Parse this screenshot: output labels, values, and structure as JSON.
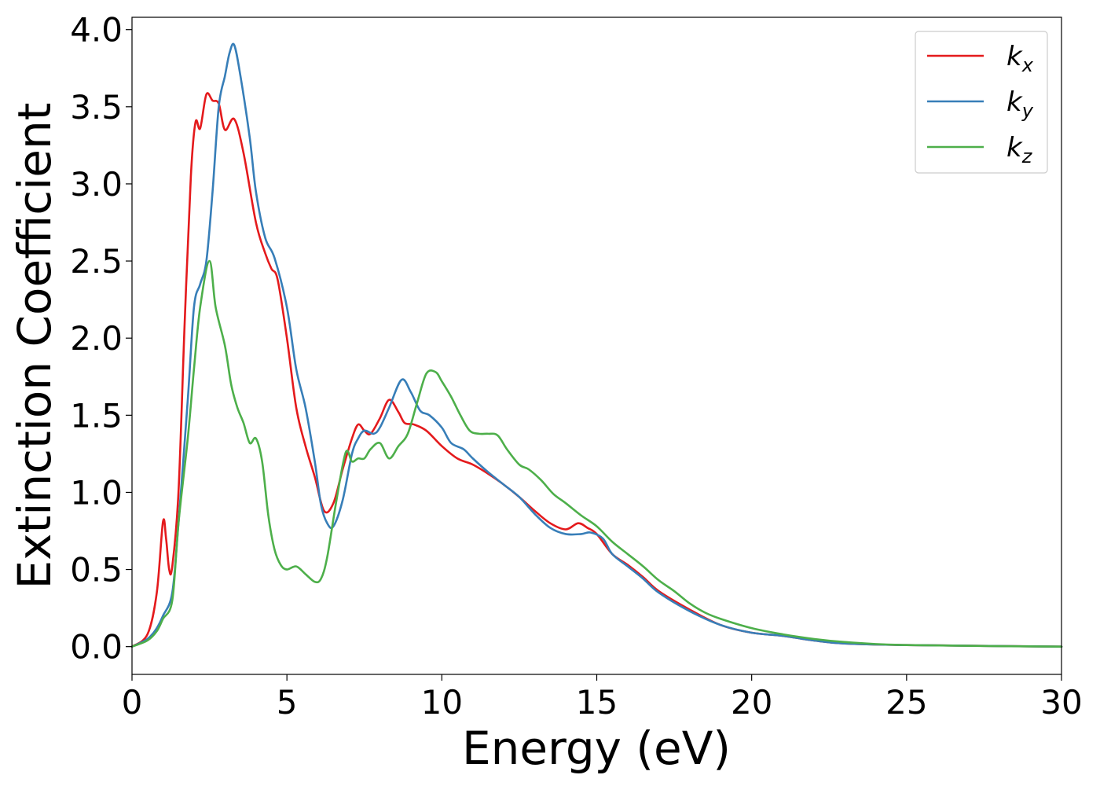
{
  "chart_data": {
    "type": "line",
    "title": "",
    "xlabel": "Energy (eV)",
    "ylabel": "Extinction Coefficient",
    "xlim": [
      0,
      30
    ],
    "ylim": [
      -0.18,
      4.08
    ],
    "xticks": [
      0,
      5,
      10,
      15,
      20,
      25,
      30
    ],
    "xtick_labels": [
      "0",
      "5",
      "10",
      "15",
      "20",
      "25",
      "30"
    ],
    "yticks": [
      0.0,
      0.5,
      1.0,
      1.5,
      2.0,
      2.5,
      3.0,
      3.5,
      4.0
    ],
    "ytick_labels": [
      "0.0",
      "0.5",
      "1.0",
      "1.5",
      "2.0",
      "2.5",
      "3.0",
      "3.5",
      "4.0"
    ],
    "grid": false,
    "legend_position": "top-right",
    "series": [
      {
        "name": "k",
        "subscript": "x",
        "color": "#e41a1c",
        "points": [
          [
            0,
            0
          ],
          [
            0.5,
            0.08
          ],
          [
            0.8,
            0.35
          ],
          [
            1.0,
            0.81
          ],
          [
            1.1,
            0.7
          ],
          [
            1.2,
            0.5
          ],
          [
            1.3,
            0.52
          ],
          [
            1.5,
            1.0
          ],
          [
            1.7,
            2.1
          ],
          [
            1.9,
            3.05
          ],
          [
            2.05,
            3.4
          ],
          [
            2.2,
            3.36
          ],
          [
            2.4,
            3.58
          ],
          [
            2.6,
            3.54
          ],
          [
            2.8,
            3.52
          ],
          [
            3.0,
            3.35
          ],
          [
            3.3,
            3.42
          ],
          [
            3.6,
            3.2
          ],
          [
            4.0,
            2.75
          ],
          [
            4.3,
            2.55
          ],
          [
            4.5,
            2.45
          ],
          [
            4.7,
            2.38
          ],
          [
            5.0,
            2.0
          ],
          [
            5.3,
            1.55
          ],
          [
            5.6,
            1.3
          ],
          [
            5.9,
            1.1
          ],
          [
            6.2,
            0.88
          ],
          [
            6.5,
            0.93
          ],
          [
            6.8,
            1.15
          ],
          [
            7.1,
            1.35
          ],
          [
            7.3,
            1.44
          ],
          [
            7.5,
            1.4
          ],
          [
            7.7,
            1.38
          ],
          [
            8.0,
            1.48
          ],
          [
            8.3,
            1.6
          ],
          [
            8.6,
            1.52
          ],
          [
            8.8,
            1.45
          ],
          [
            9.1,
            1.44
          ],
          [
            9.5,
            1.4
          ],
          [
            10.0,
            1.3
          ],
          [
            10.5,
            1.22
          ],
          [
            11.0,
            1.18
          ],
          [
            11.5,
            1.12
          ],
          [
            12.0,
            1.05
          ],
          [
            12.5,
            0.97
          ],
          [
            13.0,
            0.88
          ],
          [
            13.5,
            0.8
          ],
          [
            14.0,
            0.76
          ],
          [
            14.4,
            0.8
          ],
          [
            14.7,
            0.77
          ],
          [
            15.0,
            0.73
          ],
          [
            15.5,
            0.6
          ],
          [
            16.0,
            0.53
          ],
          [
            16.5,
            0.45
          ],
          [
            17.0,
            0.36
          ],
          [
            18.0,
            0.24
          ],
          [
            19.0,
            0.14
          ],
          [
            20.0,
            0.09
          ],
          [
            21.0,
            0.07
          ],
          [
            22.0,
            0.04
          ],
          [
            23.0,
            0.02
          ],
          [
            25.0,
            0.01
          ],
          [
            30.0,
            0.0
          ]
        ]
      },
      {
        "name": "k",
        "subscript": "y",
        "color": "#377eb8",
        "points": [
          [
            0,
            0
          ],
          [
            0.5,
            0.05
          ],
          [
            0.8,
            0.12
          ],
          [
            1.0,
            0.2
          ],
          [
            1.3,
            0.35
          ],
          [
            1.5,
            0.8
          ],
          [
            1.8,
            1.6
          ],
          [
            2.0,
            2.2
          ],
          [
            2.2,
            2.35
          ],
          [
            2.4,
            2.5
          ],
          [
            2.6,
            2.95
          ],
          [
            2.8,
            3.5
          ],
          [
            3.0,
            3.7
          ],
          [
            3.15,
            3.85
          ],
          [
            3.3,
            3.9
          ],
          [
            3.5,
            3.7
          ],
          [
            3.8,
            3.3
          ],
          [
            4.0,
            2.95
          ],
          [
            4.3,
            2.65
          ],
          [
            4.6,
            2.52
          ],
          [
            5.0,
            2.2
          ],
          [
            5.3,
            1.8
          ],
          [
            5.6,
            1.55
          ],
          [
            5.9,
            1.2
          ],
          [
            6.1,
            0.92
          ],
          [
            6.3,
            0.8
          ],
          [
            6.5,
            0.78
          ],
          [
            6.8,
            0.95
          ],
          [
            7.1,
            1.25
          ],
          [
            7.3,
            1.35
          ],
          [
            7.5,
            1.4
          ],
          [
            7.8,
            1.38
          ],
          [
            8.0,
            1.42
          ],
          [
            8.3,
            1.55
          ],
          [
            8.7,
            1.73
          ],
          [
            9.0,
            1.65
          ],
          [
            9.3,
            1.53
          ],
          [
            9.6,
            1.5
          ],
          [
            10.0,
            1.42
          ],
          [
            10.3,
            1.32
          ],
          [
            10.7,
            1.28
          ],
          [
            11.0,
            1.22
          ],
          [
            11.5,
            1.13
          ],
          [
            12.0,
            1.05
          ],
          [
            12.5,
            0.97
          ],
          [
            13.0,
            0.86
          ],
          [
            13.5,
            0.77
          ],
          [
            14.0,
            0.73
          ],
          [
            14.5,
            0.73
          ],
          [
            14.8,
            0.74
          ],
          [
            15.2,
            0.7
          ],
          [
            15.5,
            0.6
          ],
          [
            16.0,
            0.52
          ],
          [
            16.5,
            0.44
          ],
          [
            17.0,
            0.35
          ],
          [
            18.0,
            0.23
          ],
          [
            19.0,
            0.14
          ],
          [
            20.0,
            0.09
          ],
          [
            21.0,
            0.07
          ],
          [
            22.0,
            0.04
          ],
          [
            23.0,
            0.02
          ],
          [
            25.0,
            0.01
          ],
          [
            30.0,
            0.0
          ]
        ]
      },
      {
        "name": "k",
        "subscript": "z",
        "color": "#4daf4a",
        "points": [
          [
            0,
            0
          ],
          [
            0.5,
            0.04
          ],
          [
            0.8,
            0.1
          ],
          [
            1.0,
            0.18
          ],
          [
            1.3,
            0.3
          ],
          [
            1.5,
            0.8
          ],
          [
            1.8,
            1.35
          ],
          [
            2.0,
            1.8
          ],
          [
            2.2,
            2.2
          ],
          [
            2.5,
            2.5
          ],
          [
            2.7,
            2.2
          ],
          [
            3.0,
            1.95
          ],
          [
            3.2,
            1.7
          ],
          [
            3.4,
            1.55
          ],
          [
            3.6,
            1.45
          ],
          [
            3.8,
            1.32
          ],
          [
            4.0,
            1.35
          ],
          [
            4.2,
            1.2
          ],
          [
            4.4,
            0.85
          ],
          [
            4.6,
            0.63
          ],
          [
            4.8,
            0.53
          ],
          [
            5.0,
            0.5
          ],
          [
            5.3,
            0.52
          ],
          [
            5.6,
            0.47
          ],
          [
            5.9,
            0.42
          ],
          [
            6.1,
            0.44
          ],
          [
            6.3,
            0.58
          ],
          [
            6.6,
            0.95
          ],
          [
            6.9,
            1.26
          ],
          [
            7.1,
            1.2
          ],
          [
            7.3,
            1.22
          ],
          [
            7.5,
            1.22
          ],
          [
            7.7,
            1.28
          ],
          [
            8.0,
            1.32
          ],
          [
            8.3,
            1.22
          ],
          [
            8.6,
            1.3
          ],
          [
            8.9,
            1.38
          ],
          [
            9.2,
            1.58
          ],
          [
            9.5,
            1.77
          ],
          [
            9.8,
            1.78
          ],
          [
            10.0,
            1.72
          ],
          [
            10.3,
            1.62
          ],
          [
            10.6,
            1.5
          ],
          [
            10.9,
            1.4
          ],
          [
            11.2,
            1.38
          ],
          [
            11.5,
            1.38
          ],
          [
            11.8,
            1.37
          ],
          [
            12.1,
            1.28
          ],
          [
            12.5,
            1.18
          ],
          [
            12.8,
            1.15
          ],
          [
            13.2,
            1.08
          ],
          [
            13.6,
            0.99
          ],
          [
            14.0,
            0.93
          ],
          [
            14.5,
            0.85
          ],
          [
            15.0,
            0.78
          ],
          [
            15.5,
            0.68
          ],
          [
            16.0,
            0.6
          ],
          [
            16.5,
            0.52
          ],
          [
            17.0,
            0.43
          ],
          [
            17.5,
            0.36
          ],
          [
            18.0,
            0.28
          ],
          [
            18.5,
            0.22
          ],
          [
            19.0,
            0.18
          ],
          [
            20.0,
            0.12
          ],
          [
            21.0,
            0.08
          ],
          [
            22.0,
            0.05
          ],
          [
            23.0,
            0.03
          ],
          [
            25.0,
            0.01
          ],
          [
            30.0,
            0.0
          ]
        ]
      }
    ]
  }
}
